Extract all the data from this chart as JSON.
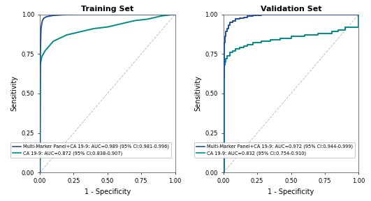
{
  "title_left": "Training Set",
  "title_right": "Validation Set",
  "xlabel": "1 - Specificity",
  "ylabel": "Sensitivity",
  "xlim": [
    0.0,
    1.0
  ],
  "ylim": [
    0.0,
    1.0
  ],
  "xticks": [
    0.0,
    0.25,
    0.5,
    0.75,
    1.0
  ],
  "yticks": [
    0.0,
    0.25,
    0.5,
    0.75,
    1.0
  ],
  "color_multi": "#1f4e9e",
  "color_ca199": "#008b8b",
  "legend_left": [
    "Multi-Marker Panel+CA 19-9: AUC=0.989 (95% CI:0.981-0.996)",
    "CA 19-9: AUC=0.872 (95% CI:0.838-0.907)"
  ],
  "legend_right": [
    "Multi-Marker Panel+CA 19-9: AUC=0.972 (95% CI:0.944-0.999)",
    "CA 19-9: AUC=0.832 (95% CI:0.754-0.910)"
  ],
  "bg_color": "#ffffff",
  "title_fontsize": 8,
  "label_fontsize": 7,
  "tick_fontsize": 6,
  "legend_fontsize": 4.8,
  "linewidth": 1.4,
  "train_multi_x": [
    0,
    0.003,
    0.005,
    0.008,
    0.01,
    0.015,
    0.02,
    0.03,
    0.05,
    0.08,
    0.1,
    0.15,
    0.2,
    0.3,
    0.4,
    0.5,
    0.6,
    0.7,
    0.8,
    0.9,
    0.95,
    1.0
  ],
  "train_multi_y": [
    0,
    0.6,
    0.75,
    0.87,
    0.91,
    0.94,
    0.96,
    0.975,
    0.985,
    0.99,
    0.993,
    0.996,
    0.998,
    1.0,
    1.0,
    1.0,
    1.0,
    1.0,
    1.0,
    1.0,
    1.0,
    1.0
  ],
  "train_ca_x": [
    0,
    0.003,
    0.005,
    0.008,
    0.01,
    0.015,
    0.02,
    0.04,
    0.06,
    0.08,
    0.1,
    0.15,
    0.2,
    0.25,
    0.3,
    0.35,
    0.4,
    0.5,
    0.6,
    0.7,
    0.8,
    0.9,
    1.0
  ],
  "train_ca_y": [
    0,
    0.0,
    0.68,
    0.7,
    0.71,
    0.73,
    0.74,
    0.77,
    0.79,
    0.81,
    0.83,
    0.85,
    0.87,
    0.88,
    0.89,
    0.9,
    0.91,
    0.92,
    0.94,
    0.96,
    0.97,
    0.99,
    1.0
  ],
  "val_multi_x": [
    0,
    0.003,
    0.005,
    0.01,
    0.02,
    0.03,
    0.04,
    0.05,
    0.07,
    0.09,
    0.12,
    0.15,
    0.18,
    0.22,
    0.28,
    0.35,
    0.45,
    0.6,
    0.75,
    0.85,
    0.9,
    0.95,
    1.0
  ],
  "val_multi_y": [
    0,
    0.6,
    0.82,
    0.86,
    0.89,
    0.91,
    0.93,
    0.95,
    0.96,
    0.97,
    0.975,
    0.98,
    0.99,
    0.995,
    1.0,
    1.0,
    1.0,
    1.0,
    1.0,
    1.0,
    1.0,
    1.0,
    1.0
  ],
  "val_ca_x": [
    0,
    0.003,
    0.005,
    0.01,
    0.02,
    0.03,
    0.05,
    0.07,
    0.09,
    0.12,
    0.15,
    0.18,
    0.22,
    0.28,
    0.35,
    0.42,
    0.5,
    0.6,
    0.7,
    0.8,
    0.85,
    0.9,
    1.0
  ],
  "val_ca_y": [
    0,
    0.0,
    0.68,
    0.7,
    0.72,
    0.74,
    0.76,
    0.77,
    0.78,
    0.79,
    0.8,
    0.81,
    0.82,
    0.83,
    0.84,
    0.85,
    0.86,
    0.87,
    0.88,
    0.89,
    0.9,
    0.92,
    1.0
  ]
}
